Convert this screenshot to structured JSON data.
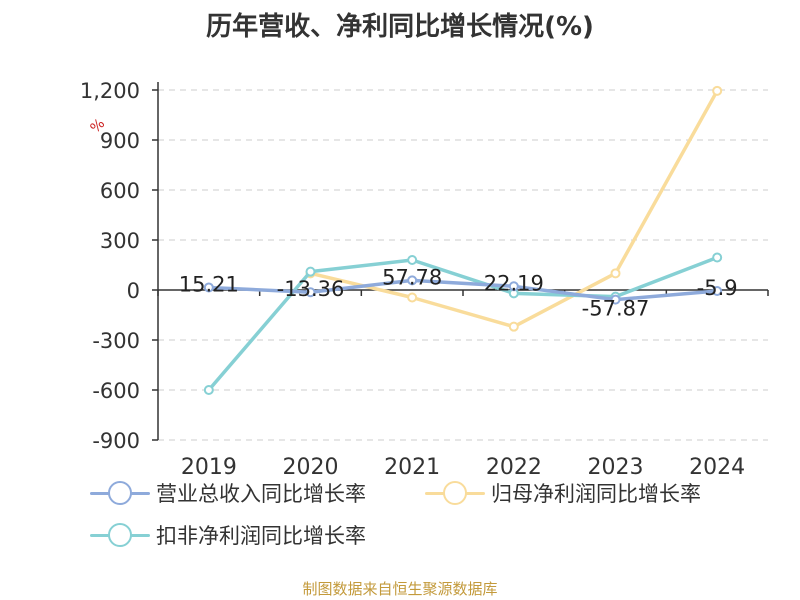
{
  "title": "历年营收、净利同比增长情况(%)",
  "source": "制图数据来自恒生聚源数据库",
  "chart_data": {
    "type": "line",
    "x": [
      "2019",
      "2020",
      "2021",
      "2022",
      "2023",
      "2024"
    ],
    "ylim": [
      -900,
      1200
    ],
    "yticks": [
      -900,
      -600,
      -300,
      0,
      300,
      600,
      900,
      1200
    ],
    "ytick_labels": [
      "-900",
      "-600",
      "-300",
      "0",
      "300",
      "600",
      "900",
      "1,200"
    ],
    "ylabel": "%",
    "grid": true,
    "legend_position": "bottom",
    "series": [
      {
        "name": "营业总收入同比增长率",
        "color": "#8eaadb",
        "values": [
          15.21,
          -13.36,
          57.78,
          22.19,
          -57.87,
          -5.9
        ],
        "labels": [
          "15.21",
          "-13.36",
          "57.78",
          "22.19",
          "-57.87",
          "-5.9"
        ]
      },
      {
        "name": "归母净利润同比增长率",
        "color": "#f9dc9b",
        "values": [
          null,
          100,
          -45,
          -220,
          100,
          1195
        ]
      },
      {
        "name": "扣非净利润同比增长率",
        "color": "#86d0d4",
        "values": [
          -600,
          110,
          180,
          -20,
          -40,
          195
        ]
      }
    ]
  }
}
